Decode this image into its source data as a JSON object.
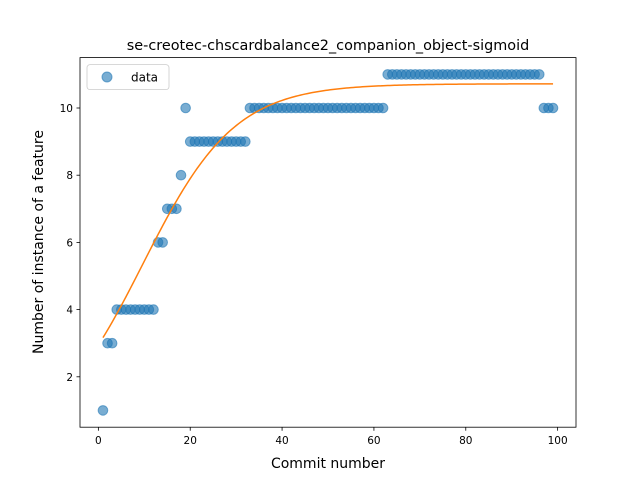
{
  "chart_data": {
    "type": "scatter",
    "title": "se-creotec-chscardbalance2_companion_object-sigmoid",
    "xlabel": "Commit number",
    "ylabel": "Number of instance of a feature",
    "xlim": [
      -4,
      104
    ],
    "ylim": [
      0.5,
      11.5
    ],
    "xticks": [
      0,
      20,
      40,
      60,
      80,
      100
    ],
    "yticks": [
      2,
      4,
      6,
      8,
      10
    ],
    "legend": {
      "label": "data",
      "location": "upper-left"
    },
    "series": [
      {
        "name": "data",
        "kind": "scatter",
        "color": "#1f77b4",
        "x": [
          1,
          2,
          3,
          4,
          5,
          6,
          7,
          8,
          9,
          10,
          11,
          12,
          13,
          14,
          15,
          16,
          17,
          18,
          19,
          20,
          21,
          22,
          23,
          24,
          25,
          26,
          27,
          28,
          29,
          30,
          31,
          32,
          33,
          34,
          35,
          36,
          37,
          38,
          39,
          40,
          41,
          42,
          43,
          44,
          45,
          46,
          47,
          48,
          49,
          50,
          51,
          52,
          53,
          54,
          55,
          56,
          57,
          58,
          59,
          60,
          61,
          62,
          63,
          64,
          65,
          66,
          67,
          68,
          69,
          70,
          71,
          72,
          73,
          74,
          75,
          76,
          77,
          78,
          79,
          80,
          81,
          82,
          83,
          84,
          85,
          86,
          87,
          88,
          89,
          90,
          91,
          92,
          93,
          94,
          95,
          96,
          97,
          98,
          99
        ],
        "y": [
          1,
          3,
          3,
          4,
          4,
          4,
          4,
          4,
          4,
          4,
          4,
          4,
          6,
          6,
          7,
          7,
          7,
          8,
          10,
          9,
          9,
          9,
          9,
          9,
          9,
          9,
          9,
          9,
          9,
          9,
          9,
          9,
          10,
          10,
          10,
          10,
          10,
          10,
          10,
          10,
          10,
          10,
          10,
          10,
          10,
          10,
          10,
          10,
          10,
          10,
          10,
          10,
          10,
          10,
          10,
          10,
          10,
          10,
          10,
          10,
          10,
          10,
          11,
          11,
          11,
          11,
          11,
          11,
          11,
          11,
          11,
          11,
          11,
          11,
          11,
          11,
          11,
          11,
          11,
          11,
          11,
          11,
          11,
          11,
          11,
          11,
          11,
          11,
          11,
          11,
          11,
          11,
          11,
          11,
          11,
          11,
          10,
          10,
          10
        ]
      },
      {
        "name": "sigmoid fit",
        "kind": "line",
        "color": "#ff7f0e",
        "L": 10.72,
        "k": 0.1,
        "x0": 9.7,
        "xrange": [
          1,
          99
        ]
      }
    ]
  }
}
